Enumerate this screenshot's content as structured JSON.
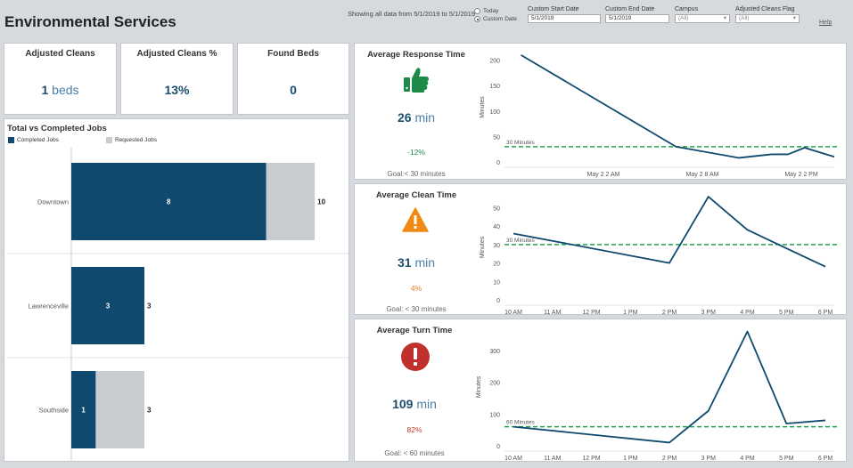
{
  "app": {
    "title": "Environmental Services",
    "help": "Help"
  },
  "filters": {
    "showing": "Showing all data from 5/1/2019 to 5/1/2019",
    "radio": [
      {
        "label": "Today",
        "selected": false
      },
      {
        "label": "Custom Date",
        "selected": true
      }
    ],
    "start_label": "Custom Start Date",
    "start_value": "5/1/2019",
    "end_label": "Custom End Date",
    "end_value": "5/1/2019",
    "campus_label": "Campus",
    "campus_value": "(All)",
    "flag_label": "Adjusted Cleans Flag",
    "flag_value": "(All)"
  },
  "kpis": [
    {
      "title": "Adjusted Cleans",
      "value": "1",
      "unit": "beds"
    },
    {
      "title": "Adjusted Cleans %",
      "value": "13%",
      "unit": ""
    },
    {
      "title": "Found Beds",
      "value": "0",
      "unit": ""
    }
  ],
  "jobs_chart": {
    "title": "Total vs Completed Jobs",
    "legend": [
      {
        "label": "Completed Jobs",
        "color": "#0f4a6e"
      },
      {
        "label": "Requested Jobs",
        "color": "#c8ccd1"
      }
    ]
  },
  "metrics": [
    {
      "title": "Average Response Time",
      "value": "26",
      "unit": "min",
      "pct": "-12%",
      "pct_color": "#1e8a4a",
      "goal": "Goal:< 30 minutes",
      "icon": "thumbs-up-icon",
      "icon_color": "#1e8a4a"
    },
    {
      "title": "Average Clean Time",
      "value": "31",
      "unit": "min",
      "pct": "4%",
      "pct_color": "#e07a1a",
      "goal": "Goal: < 30 minutes",
      "icon": "warning-icon",
      "icon_color": "#f08a12"
    },
    {
      "title": "Average Turn Time",
      "value": "109",
      "unit": "min",
      "pct": "82%",
      "pct_color": "#c0392b",
      "goal": "Goal: < 60 minutes",
      "icon": "alert-circle-icon",
      "icon_color": "#c0302c"
    }
  ],
  "chart_data": [
    {
      "type": "bar",
      "title": "Total vs Completed Jobs",
      "orientation": "horizontal",
      "categories": [
        "Downtown",
        "Lawrenceville",
        "Southside"
      ],
      "series": [
        {
          "name": "Completed Jobs",
          "values": [
            8,
            3,
            1
          ],
          "color": "#0f4a6e"
        },
        {
          "name": "Requested Jobs",
          "values": [
            10,
            3,
            3
          ],
          "color": "#c8ccd1"
        }
      ],
      "xlim": [
        0,
        10.8
      ]
    },
    {
      "type": "line",
      "title": "Average Response Time",
      "ylabel": "Minutes",
      "x_ticks": [
        "May 2 2 AM",
        "May 2 8 AM",
        "May 2 2 PM"
      ],
      "x_tick_pos": [
        0.3,
        0.6,
        0.9
      ],
      "x": [
        0.05,
        0.52,
        0.71,
        0.81,
        0.86,
        0.91,
        1.0
      ],
      "y": [
        210,
        30,
        8,
        15,
        15,
        28,
        10
      ],
      "ylim": [
        0,
        215
      ],
      "y_ticks": [
        0,
        50,
        100,
        150,
        200
      ],
      "goal": 30,
      "goal_label": "30 Minutes",
      "color": "#0f4a6e",
      "goal_color": "#1fa34a"
    },
    {
      "type": "line",
      "title": "Average Clean Time",
      "ylabel": "Minutes",
      "categories": [
        "10 AM",
        "11 AM",
        "12 PM",
        "1 PM",
        "2 PM",
        "3 PM",
        "4 PM",
        "5 PM",
        "6 PM"
      ],
      "values": [
        36,
        null,
        null,
        null,
        20,
        56,
        38,
        null,
        18
      ],
      "ylim": [
        0,
        57
      ],
      "y_ticks": [
        0,
        10,
        20,
        30,
        40,
        50
      ],
      "goal": 30,
      "goal_label": "30 Minutes",
      "color": "#0f4a6e",
      "goal_color": "#1fa34a"
    },
    {
      "type": "line",
      "title": "Average Turn Time",
      "ylabel": "Minutes",
      "categories": [
        "10 AM",
        "11 AM",
        "12 PM",
        "1 PM",
        "2 PM",
        "3 PM",
        "4 PM",
        "5 PM",
        "6 PM"
      ],
      "values": [
        60,
        null,
        null,
        null,
        10,
        110,
        360,
        70,
        80
      ],
      "ylim": [
        0,
        370
      ],
      "y_ticks": [
        0,
        100,
        200,
        300
      ],
      "goal": 60,
      "goal_label": "60 Minutes",
      "color": "#0f4a6e",
      "goal_color": "#1fa34a"
    }
  ]
}
